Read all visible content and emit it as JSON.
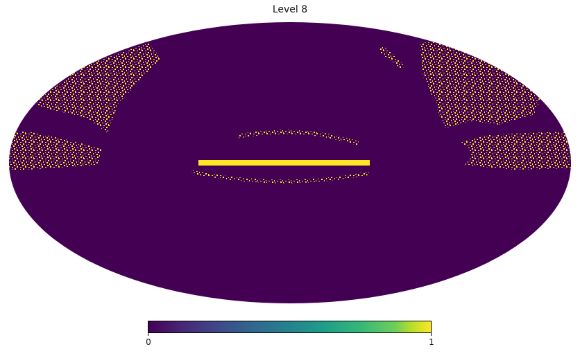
{
  "chart_data": {
    "type": "heatmap",
    "projection": "mollweide",
    "title": "Level 8",
    "colormap": "viridis",
    "value_range": [
      0,
      1
    ],
    "background_value": 0,
    "colorbar": {
      "orientation": "horizontal",
      "ticks": [
        "0",
        "1"
      ]
    },
    "colors": {
      "low": "#440154",
      "high": "#fde725"
    }
  }
}
